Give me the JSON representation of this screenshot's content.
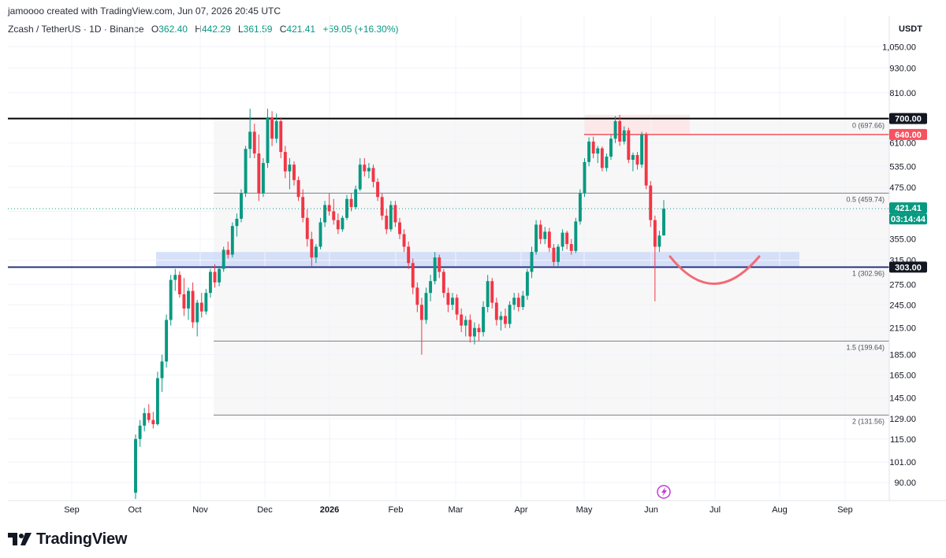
{
  "header": {
    "credit": "jamoooo created with TradingView.com, Jun 07, 2026 20:45 UTC"
  },
  "legend": {
    "symbol": "Zcash / TetherUS · 1D · Binance",
    "o_label": "O",
    "o_value": "362.40",
    "h_label": "H",
    "h_value": "442.29",
    "l_label": "L",
    "l_value": "361.59",
    "c_label": "C",
    "c_value": "421.41",
    "change": "+59.05 (+16.30%)"
  },
  "brand": {
    "name": "TradingView"
  },
  "colors": {
    "up": "#089981",
    "down": "#f23645",
    "resistance": "#000000",
    "support_line": "#1e2a78",
    "zone": "#c9d7f7",
    "red_level": "#f7525f"
  },
  "chart_data": {
    "type": "candlestick",
    "title": "",
    "y_unit": "USDT",
    "y_scale": "log",
    "ylim": [
      82,
      1250
    ],
    "x_ticks": [
      "Sep",
      "Oct",
      "Nov",
      "Dec",
      "2026",
      "Feb",
      "Mar",
      "Apr",
      "May",
      "Jun",
      "Jul",
      "Aug",
      "Sep"
    ],
    "y_ticks": [
      "1,050.00",
      "930.00",
      "810.00",
      "700.00",
      "610.00",
      "535.00",
      "475.00",
      "415.00",
      "355.00",
      "315.00",
      "275.00",
      "245.00",
      "215.00",
      "185.00",
      "165.00",
      "145.00",
      "129.00",
      "115.00",
      "101.00",
      "90.00"
    ],
    "price_labels": [
      {
        "text": "700.00",
        "value": 700,
        "style": "black"
      },
      {
        "text": "640.00",
        "value": 640,
        "style": "red"
      },
      {
        "text": "421.41",
        "value": 421.41,
        "style": "green"
      },
      {
        "text": "03:14:44",
        "value": 421.41,
        "style": "green-sub"
      },
      {
        "text": "303.00",
        "value": 303,
        "style": "black"
      }
    ],
    "horizontal_levels": [
      {
        "name": "resistance",
        "value": 700
      },
      {
        "name": "red-level",
        "value": 640
      },
      {
        "name": "support",
        "value": 303
      }
    ],
    "fib_levels": [
      {
        "ratio": "0",
        "label": "0 (697.66)",
        "value": 697.66
      },
      {
        "ratio": "0.5",
        "label": "0.5 (459.74)",
        "value": 459.74
      },
      {
        "ratio": "1",
        "label": "1 (302.96)",
        "value": 302.96
      },
      {
        "ratio": "1.5",
        "label": "1.5 (199.64)",
        "value": 199.64
      },
      {
        "ratio": "2",
        "label": "2 (131.56)",
        "value": 131.56
      }
    ],
    "zones": [
      {
        "name": "demand-zone",
        "low": 303,
        "high": 330
      },
      {
        "name": "top-zone",
        "low": 640,
        "high": 715
      }
    ],
    "projection": "arc down then up from ~325 to ~275 to ~330",
    "candles": [
      {
        "o": 85,
        "h": 118,
        "l": 82,
        "c": 115
      },
      {
        "o": 115,
        "h": 128,
        "l": 110,
        "c": 124
      },
      {
        "o": 124,
        "h": 137,
        "l": 120,
        "c": 133
      },
      {
        "o": 133,
        "h": 140,
        "l": 126,
        "c": 128
      },
      {
        "o": 128,
        "h": 134,
        "l": 122,
        "c": 125
      },
      {
        "o": 125,
        "h": 168,
        "l": 124,
        "c": 162
      },
      {
        "o": 162,
        "h": 185,
        "l": 150,
        "c": 178
      },
      {
        "o": 178,
        "h": 232,
        "l": 172,
        "c": 225
      },
      {
        "o": 225,
        "h": 290,
        "l": 218,
        "c": 282
      },
      {
        "o": 282,
        "h": 300,
        "l": 265,
        "c": 290
      },
      {
        "o": 290,
        "h": 296,
        "l": 255,
        "c": 260
      },
      {
        "o": 260,
        "h": 285,
        "l": 230,
        "c": 240
      },
      {
        "o": 240,
        "h": 270,
        "l": 225,
        "c": 265
      },
      {
        "o": 265,
        "h": 278,
        "l": 215,
        "c": 222
      },
      {
        "o": 222,
        "h": 252,
        "l": 205,
        "c": 248
      },
      {
        "o": 248,
        "h": 262,
        "l": 228,
        "c": 236
      },
      {
        "o": 236,
        "h": 268,
        "l": 232,
        "c": 262
      },
      {
        "o": 262,
        "h": 300,
        "l": 255,
        "c": 295
      },
      {
        "o": 295,
        "h": 308,
        "l": 270,
        "c": 278
      },
      {
        "o": 278,
        "h": 305,
        "l": 272,
        "c": 300
      },
      {
        "o": 300,
        "h": 340,
        "l": 295,
        "c": 334
      },
      {
        "o": 334,
        "h": 350,
        "l": 318,
        "c": 325
      },
      {
        "o": 325,
        "h": 390,
        "l": 320,
        "c": 382
      },
      {
        "o": 382,
        "h": 410,
        "l": 360,
        "c": 398
      },
      {
        "o": 398,
        "h": 470,
        "l": 390,
        "c": 460
      },
      {
        "o": 460,
        "h": 600,
        "l": 450,
        "c": 590
      },
      {
        "o": 590,
        "h": 740,
        "l": 560,
        "c": 650
      },
      {
        "o": 650,
        "h": 680,
        "l": 560,
        "c": 575
      },
      {
        "o": 575,
        "h": 640,
        "l": 440,
        "c": 460
      },
      {
        "o": 460,
        "h": 560,
        "l": 450,
        "c": 545
      },
      {
        "o": 545,
        "h": 740,
        "l": 530,
        "c": 705
      },
      {
        "o": 705,
        "h": 730,
        "l": 600,
        "c": 625
      },
      {
        "o": 625,
        "h": 720,
        "l": 610,
        "c": 690
      },
      {
        "o": 690,
        "h": 705,
        "l": 560,
        "c": 580
      },
      {
        "o": 580,
        "h": 600,
        "l": 500,
        "c": 520
      },
      {
        "o": 520,
        "h": 560,
        "l": 470,
        "c": 540
      },
      {
        "o": 540,
        "h": 550,
        "l": 480,
        "c": 495
      },
      {
        "o": 495,
        "h": 505,
        "l": 440,
        "c": 450
      },
      {
        "o": 450,
        "h": 470,
        "l": 390,
        "c": 400
      },
      {
        "o": 400,
        "h": 420,
        "l": 340,
        "c": 355
      },
      {
        "o": 355,
        "h": 370,
        "l": 305,
        "c": 320
      },
      {
        "o": 320,
        "h": 345,
        "l": 310,
        "c": 340
      },
      {
        "o": 340,
        "h": 400,
        "l": 335,
        "c": 390
      },
      {
        "o": 390,
        "h": 440,
        "l": 380,
        "c": 430
      },
      {
        "o": 430,
        "h": 460,
        "l": 405,
        "c": 415
      },
      {
        "o": 415,
        "h": 445,
        "l": 385,
        "c": 395
      },
      {
        "o": 395,
        "h": 410,
        "l": 365,
        "c": 375
      },
      {
        "o": 375,
        "h": 405,
        "l": 370,
        "c": 400
      },
      {
        "o": 400,
        "h": 455,
        "l": 395,
        "c": 445
      },
      {
        "o": 445,
        "h": 460,
        "l": 415,
        "c": 425
      },
      {
        "o": 425,
        "h": 480,
        "l": 420,
        "c": 470
      },
      {
        "o": 470,
        "h": 560,
        "l": 465,
        "c": 540
      },
      {
        "o": 540,
        "h": 560,
        "l": 505,
        "c": 520
      },
      {
        "o": 520,
        "h": 545,
        "l": 500,
        "c": 530
      },
      {
        "o": 530,
        "h": 540,
        "l": 475,
        "c": 490
      },
      {
        "o": 490,
        "h": 500,
        "l": 440,
        "c": 450
      },
      {
        "o": 450,
        "h": 460,
        "l": 395,
        "c": 405
      },
      {
        "o": 405,
        "h": 420,
        "l": 365,
        "c": 375
      },
      {
        "o": 375,
        "h": 440,
        "l": 370,
        "c": 430
      },
      {
        "o": 430,
        "h": 440,
        "l": 380,
        "c": 390
      },
      {
        "o": 390,
        "h": 400,
        "l": 355,
        "c": 365
      },
      {
        "o": 365,
        "h": 375,
        "l": 330,
        "c": 340
      },
      {
        "o": 340,
        "h": 350,
        "l": 300,
        "c": 310
      },
      {
        "o": 310,
        "h": 318,
        "l": 260,
        "c": 270
      },
      {
        "o": 270,
        "h": 278,
        "l": 235,
        "c": 245
      },
      {
        "o": 245,
        "h": 255,
        "l": 185,
        "c": 225
      },
      {
        "o": 225,
        "h": 270,
        "l": 220,
        "c": 262
      },
      {
        "o": 262,
        "h": 290,
        "l": 250,
        "c": 280
      },
      {
        "o": 280,
        "h": 330,
        "l": 275,
        "c": 320
      },
      {
        "o": 320,
        "h": 325,
        "l": 285,
        "c": 295
      },
      {
        "o": 295,
        "h": 300,
        "l": 255,
        "c": 262
      },
      {
        "o": 262,
        "h": 270,
        "l": 235,
        "c": 245
      },
      {
        "o": 245,
        "h": 262,
        "l": 238,
        "c": 255
      },
      {
        "o": 255,
        "h": 260,
        "l": 225,
        "c": 232
      },
      {
        "o": 232,
        "h": 240,
        "l": 210,
        "c": 218
      },
      {
        "o": 218,
        "h": 230,
        "l": 205,
        "c": 225
      },
      {
        "o": 225,
        "h": 232,
        "l": 198,
        "c": 205
      },
      {
        "o": 205,
        "h": 222,
        "l": 196,
        "c": 215
      },
      {
        "o": 215,
        "h": 220,
        "l": 200,
        "c": 210
      },
      {
        "o": 210,
        "h": 250,
        "l": 205,
        "c": 242
      },
      {
        "o": 242,
        "h": 290,
        "l": 235,
        "c": 280
      },
      {
        "o": 280,
        "h": 285,
        "l": 240,
        "c": 248
      },
      {
        "o": 248,
        "h": 255,
        "l": 218,
        "c": 225
      },
      {
        "o": 225,
        "h": 236,
        "l": 212,
        "c": 230
      },
      {
        "o": 230,
        "h": 240,
        "l": 215,
        "c": 220
      },
      {
        "o": 220,
        "h": 250,
        "l": 215,
        "c": 245
      },
      {
        "o": 245,
        "h": 262,
        "l": 238,
        "c": 255
      },
      {
        "o": 255,
        "h": 262,
        "l": 236,
        "c": 242
      },
      {
        "o": 242,
        "h": 265,
        "l": 238,
        "c": 258
      },
      {
        "o": 258,
        "h": 300,
        "l": 252,
        "c": 295
      },
      {
        "o": 295,
        "h": 340,
        "l": 285,
        "c": 330
      },
      {
        "o": 330,
        "h": 395,
        "l": 325,
        "c": 385
      },
      {
        "o": 385,
        "h": 395,
        "l": 345,
        "c": 355
      },
      {
        "o": 355,
        "h": 380,
        "l": 345,
        "c": 370
      },
      {
        "o": 370,
        "h": 378,
        "l": 330,
        "c": 338
      },
      {
        "o": 338,
        "h": 345,
        "l": 305,
        "c": 312
      },
      {
        "o": 312,
        "h": 345,
        "l": 305,
        "c": 340
      },
      {
        "o": 340,
        "h": 375,
        "l": 332,
        "c": 368
      },
      {
        "o": 368,
        "h": 372,
        "l": 335,
        "c": 345
      },
      {
        "o": 345,
        "h": 355,
        "l": 325,
        "c": 332
      },
      {
        "o": 332,
        "h": 400,
        "l": 328,
        "c": 392
      },
      {
        "o": 392,
        "h": 470,
        "l": 385,
        "c": 460
      },
      {
        "o": 460,
        "h": 560,
        "l": 450,
        "c": 548
      },
      {
        "o": 548,
        "h": 630,
        "l": 535,
        "c": 615
      },
      {
        "o": 615,
        "h": 632,
        "l": 560,
        "c": 575
      },
      {
        "o": 575,
        "h": 600,
        "l": 545,
        "c": 592
      },
      {
        "o": 592,
        "h": 598,
        "l": 520,
        "c": 530
      },
      {
        "o": 530,
        "h": 575,
        "l": 520,
        "c": 565
      },
      {
        "o": 565,
        "h": 640,
        "l": 555,
        "c": 625
      },
      {
        "o": 625,
        "h": 710,
        "l": 610,
        "c": 690
      },
      {
        "o": 690,
        "h": 715,
        "l": 600,
        "c": 615
      },
      {
        "o": 615,
        "h": 670,
        "l": 605,
        "c": 655
      },
      {
        "o": 655,
        "h": 665,
        "l": 545,
        "c": 555
      },
      {
        "o": 555,
        "h": 578,
        "l": 520,
        "c": 570
      },
      {
        "o": 570,
        "h": 580,
        "l": 525,
        "c": 540
      },
      {
        "o": 540,
        "h": 650,
        "l": 530,
        "c": 640
      },
      {
        "o": 640,
        "h": 648,
        "l": 470,
        "c": 480
      },
      {
        "o": 480,
        "h": 492,
        "l": 380,
        "c": 395
      },
      {
        "o": 395,
        "h": 405,
        "l": 250,
        "c": 340
      },
      {
        "o": 340,
        "h": 372,
        "l": 330,
        "c": 362
      },
      {
        "o": 362.4,
        "h": 442.29,
        "l": 361.59,
        "c": 421.41
      }
    ]
  }
}
